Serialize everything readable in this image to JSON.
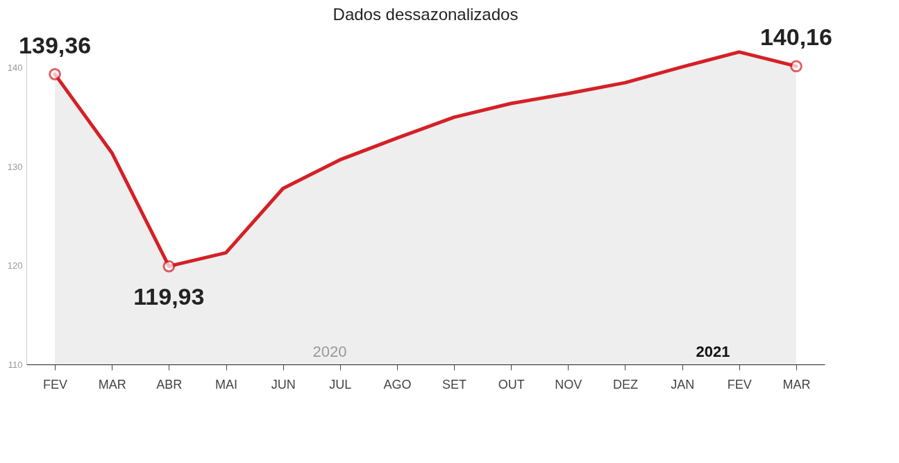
{
  "chart_data": {
    "type": "area",
    "title": "Dados dessazonalizados",
    "categories": [
      "FEV",
      "MAR",
      "ABR",
      "MAI",
      "JUN",
      "JUL",
      "AGO",
      "SET",
      "OUT",
      "NOV",
      "DEZ",
      "JAN",
      "FEV",
      "MAR"
    ],
    "series": [
      {
        "color": "#d42027",
        "values": [
          139.36,
          131.4,
          119.93,
          121.3,
          127.8,
          130.7,
          132.9,
          135.0,
          136.4,
          137.4,
          138.5,
          140.1,
          141.6,
          140.16
        ],
        "value_labels": [
          "139,36",
          null,
          "119,93",
          null,
          null,
          null,
          null,
          null,
          null,
          null,
          null,
          null,
          null,
          "140,16"
        ]
      }
    ],
    "ylim": [
      110,
      143
    ],
    "yticks": [
      110,
      120,
      130,
      140
    ],
    "grid": false,
    "marker": "none",
    "annotations": [
      "2020",
      "2021"
    ]
  }
}
